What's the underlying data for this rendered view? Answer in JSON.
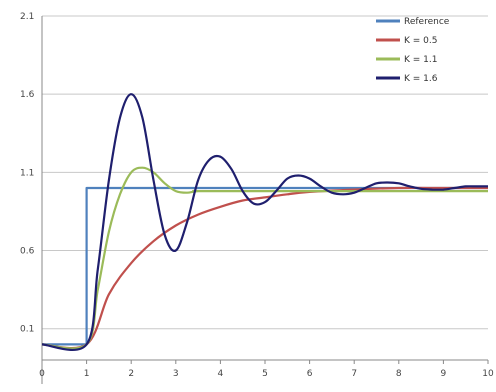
{
  "chart_data": {
    "type": "line",
    "title": "",
    "xlabel": "",
    "ylabel": "",
    "xlim": [
      0,
      10
    ],
    "ylim": [
      -0.1,
      2.1
    ],
    "grid": true,
    "legend": "top-right",
    "x_ticks": [
      0,
      1,
      2,
      3,
      4,
      5,
      6,
      7,
      8,
      9,
      10
    ],
    "x_tick_labels": [
      "0",
      "1",
      "2",
      "3",
      "4",
      "5",
      "6",
      "7",
      "8",
      "9",
      "10"
    ],
    "y_ticks": [
      0.1,
      0.6,
      1.1,
      1.6,
      2.1
    ],
    "y_tick_labels": [
      "0.1",
      "0.6",
      "1.1",
      "1.6",
      "2.1"
    ],
    "series": [
      {
        "name": "Reference",
        "color": "#4f81bd",
        "x": [
          0,
          1,
          1,
          10
        ],
        "y": [
          0,
          0,
          1,
          1
        ]
      },
      {
        "name": "K = 0.5",
        "color": "#c0504d",
        "x": [
          0,
          1,
          1.5,
          2,
          2.5,
          3,
          3.5,
          4,
          4.5,
          5,
          5.5,
          6,
          7,
          8,
          9,
          10
        ],
        "y": [
          0,
          0,
          0.32,
          0.52,
          0.66,
          0.76,
          0.83,
          0.88,
          0.92,
          0.94,
          0.96,
          0.975,
          0.99,
          1.0,
          1.0,
          1.0
        ]
      },
      {
        "name": "K = 1.1",
        "color": "#9bbb59",
        "x": [
          0,
          1,
          1.25,
          1.5,
          1.75,
          2,
          2.25,
          2.5,
          2.75,
          3,
          3.25,
          3.5,
          4,
          10
        ],
        "y": [
          0,
          0,
          0.35,
          0.72,
          0.96,
          1.1,
          1.13,
          1.1,
          1.03,
          0.98,
          0.97,
          0.98,
          0.98,
          0.98
        ]
      },
      {
        "name": "K = 1.6",
        "color": "#1f1f6e",
        "x": [
          0,
          1,
          1.25,
          1.5,
          1.75,
          2,
          2.25,
          2.5,
          2.75,
          3,
          3.25,
          3.5,
          3.75,
          4,
          4.25,
          4.5,
          4.75,
          5,
          5.25,
          5.5,
          5.75,
          6,
          6.25,
          6.5,
          6.75,
          7,
          7.25,
          7.5,
          7.75,
          8,
          8.25,
          8.5,
          8.75,
          9,
          9.25,
          9.5,
          9.75,
          10
        ],
        "y": [
          0,
          0,
          0.48,
          1.05,
          1.45,
          1.6,
          1.45,
          1.05,
          0.7,
          0.6,
          0.78,
          1.05,
          1.18,
          1.2,
          1.12,
          0.98,
          0.9,
          0.91,
          0.98,
          1.06,
          1.08,
          1.06,
          1.01,
          0.97,
          0.96,
          0.97,
          1.0,
          1.03,
          1.035,
          1.03,
          1.01,
          0.995,
          0.99,
          0.99,
          1.0,
          1.01,
          1.01,
          1.01
        ]
      }
    ]
  }
}
